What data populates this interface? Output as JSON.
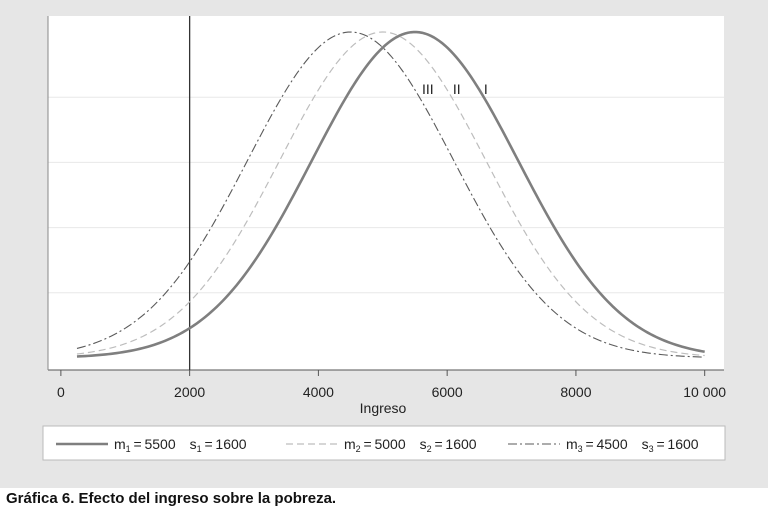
{
  "caption": "Gráfica 6. Efecto del ingreso sobre la pobreza.",
  "chart_data": {
    "type": "line",
    "xlabel": "Ingreso",
    "xlim": [
      -200,
      10300
    ],
    "ylim": [
      -0.02,
      1.02
    ],
    "xticks": [
      0,
      2000,
      4000,
      6000,
      8000,
      10000
    ],
    "xtick_labels": [
      "0",
      "2000",
      "4000",
      "6000",
      "8000",
      "10 000"
    ],
    "x_range": [
      250,
      10000
    ],
    "poverty_line": 2000,
    "grid": "horizontal",
    "legend_position": "bottom",
    "series": [
      {
        "id": "I",
        "curve_label": "I",
        "mean": 5500,
        "sd": 1600,
        "style": "solid",
        "color": "#7f7f7f",
        "legend": {
          "m_sym": "m",
          "m_sub": "1",
          "m_val": "5500",
          "s_sym": "s",
          "s_sub": "1",
          "s_val": "1600"
        }
      },
      {
        "id": "II",
        "curve_label": "II",
        "mean": 5000,
        "sd": 1600,
        "style": "dashed",
        "color": "#bdbdbd",
        "legend": {
          "m_sym": "m",
          "m_sub": "2",
          "m_val": "5000",
          "s_sym": "s",
          "s_sub": "2",
          "s_val": "1600"
        }
      },
      {
        "id": "III",
        "curve_label": "III",
        "mean": 4500,
        "sd": 1600,
        "style": "dashdot",
        "color": "#5a5a5a",
        "legend": {
          "m_sym": "m",
          "m_sub": "3",
          "m_val": "4500",
          "s_sym": "s",
          "s_sub": "3",
          "s_val": "1600"
        }
      }
    ]
  }
}
